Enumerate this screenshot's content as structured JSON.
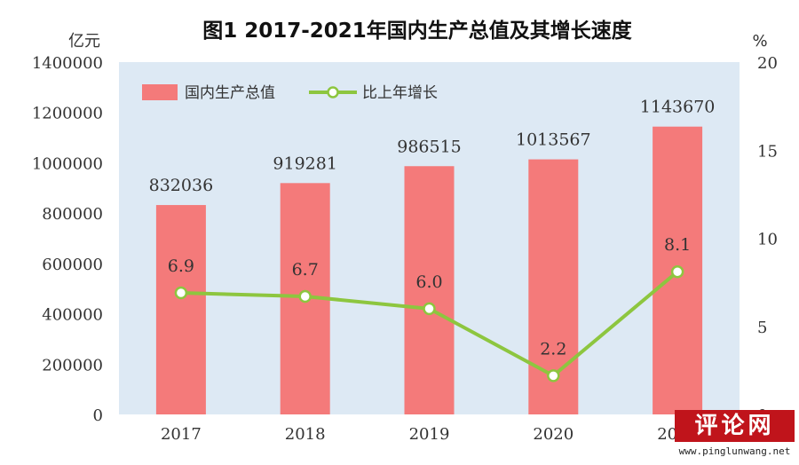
{
  "chart_data": {
    "type": "bar",
    "title": "图1   2017-2021年国内生产总值及其增长速度",
    "categories": [
      "2017",
      "2018",
      "2019",
      "2020",
      "2021"
    ],
    "series": [
      {
        "name": "国内生产总值",
        "type": "bar",
        "axis": "left",
        "values": [
          832036,
          919281,
          986515,
          1013567,
          1143670
        ],
        "labels": [
          "832036",
          "919281",
          "986515",
          "1013567",
          "1143670"
        ]
      },
      {
        "name": "比上年增长",
        "type": "line",
        "axis": "right",
        "values": [
          6.9,
          6.7,
          6.0,
          2.2,
          8.1
        ],
        "labels": [
          "6.9",
          "6.7",
          "6.0",
          "2.2",
          "8.1"
        ]
      }
    ],
    "yleft": {
      "unit": "亿元",
      "min": 0,
      "max": 1400000,
      "ticks": [
        "0",
        "200000",
        "400000",
        "600000",
        "800000",
        "1000000",
        "1200000",
        "1400000"
      ]
    },
    "yright": {
      "unit": "%",
      "min": 0,
      "max": 20,
      "ticks": [
        "0",
        "5",
        "10",
        "15",
        "20"
      ]
    },
    "legend_position": "top-left",
    "grid": false,
    "colors": {
      "bar": "#f47a7a",
      "line": "#8dc63f",
      "plot_bg": "#dde9f4",
      "point_fill": "#ffffff"
    }
  },
  "watermark": {
    "title": "评论网",
    "url": "www.pinglunwang.net"
  }
}
